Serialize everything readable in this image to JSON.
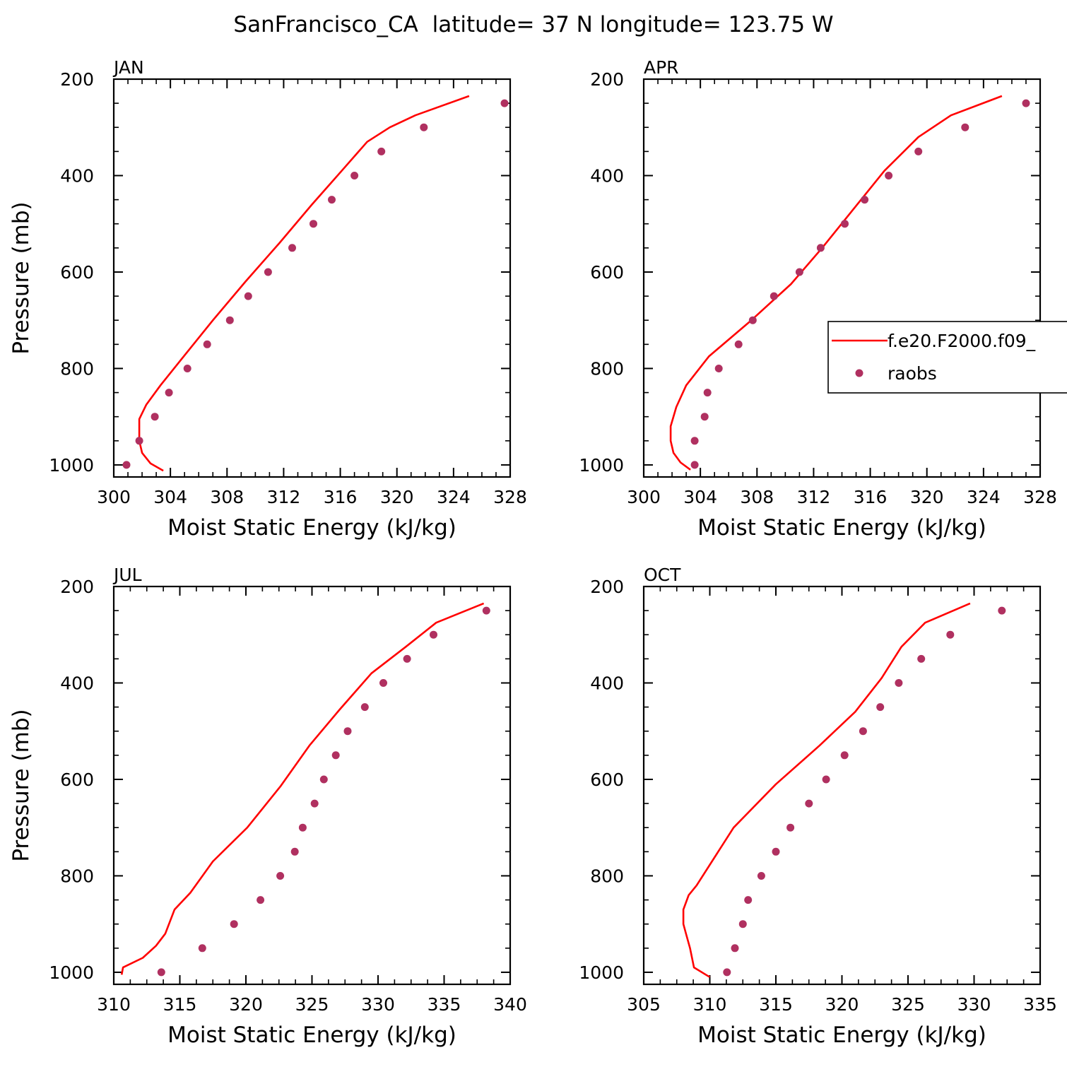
{
  "figure": {
    "title": "SanFrancisco_CA  latitude= 37 N longitude= 123.75 W",
    "legend": {
      "model_label": "f.e20.F2000.f09_",
      "obs_label": "raobs"
    },
    "colors": {
      "model": "#ff0000",
      "obs": "#b03060",
      "axis": "#000000"
    }
  },
  "chart_data": [
    {
      "type": "scatter",
      "panel": "JAN",
      "xlabel": "Moist Static Energy (kJ/kg)",
      "ylabel": "Pressure (mb)",
      "xlim": [
        300,
        328
      ],
      "xticks": [
        300,
        304,
        308,
        312,
        316,
        320,
        324,
        328
      ],
      "ylim": [
        1025,
        200
      ],
      "yticks": [
        200,
        400,
        600,
        800,
        1000
      ],
      "series": [
        {
          "name": "f.e20.F2000.f09_",
          "kind": "line",
          "x": [
            303.5,
            302.6,
            302.0,
            301.8,
            301.8,
            302.3,
            303.3,
            304.8,
            307.0,
            309.3,
            311.7,
            314.0,
            316.1,
            317.9,
            319.5,
            321.3,
            325.1
          ],
          "y": [
            1012,
            997,
            975,
            950,
            905,
            875,
            835,
            780,
            700,
            620,
            540,
            460,
            390,
            330,
            300,
            275,
            235
          ]
        },
        {
          "name": "raobs",
          "kind": "scatter",
          "x": [
            300.9,
            301.8,
            302.9,
            303.9,
            305.2,
            306.6,
            308.2,
            309.5,
            310.9,
            312.6,
            314.1,
            315.4,
            317.0,
            318.9,
            321.9,
            327.6
          ],
          "y": [
            1000,
            950,
            900,
            850,
            800,
            750,
            700,
            650,
            600,
            550,
            500,
            450,
            400,
            350,
            300,
            250
          ]
        }
      ]
    },
    {
      "type": "scatter",
      "panel": "APR",
      "xlabel": "Moist Static Energy (kJ/kg)",
      "ylabel": "",
      "xlim": [
        300,
        328
      ],
      "xticks": [
        300,
        304,
        308,
        312,
        316,
        320,
        324,
        328
      ],
      "ylim": [
        1025,
        200
      ],
      "yticks": [
        200,
        400,
        600,
        800,
        1000
      ],
      "series": [
        {
          "name": "f.e20.F2000.f09_",
          "kind": "line",
          "x": [
            303.3,
            302.6,
            302.1,
            301.9,
            301.9,
            302.3,
            303.0,
            304.6,
            307.6,
            310.4,
            312.6,
            314.8,
            317.0,
            319.4,
            321.7,
            325.3
          ],
          "y": [
            1010,
            995,
            975,
            950,
            920,
            880,
            835,
            775,
            700,
            625,
            550,
            470,
            390,
            320,
            275,
            235
          ]
        },
        {
          "name": "raobs",
          "kind": "scatter",
          "x": [
            303.6,
            303.6,
            304.3,
            304.5,
            305.3,
            306.7,
            307.7,
            309.2,
            311.0,
            312.5,
            314.2,
            315.6,
            317.3,
            319.4,
            322.7,
            327.0
          ],
          "y": [
            1000,
            950,
            900,
            850,
            800,
            750,
            700,
            650,
            600,
            550,
            500,
            450,
            400,
            350,
            300,
            250
          ]
        }
      ]
    },
    {
      "type": "scatter",
      "panel": "JUL",
      "xlabel": "Moist Static Energy (kJ/kg)",
      "ylabel": "Pressure (mb)",
      "xlim": [
        310,
        340
      ],
      "xticks": [
        310,
        315,
        320,
        325,
        330,
        335,
        340
      ],
      "ylim": [
        1025,
        200
      ],
      "yticks": [
        200,
        400,
        600,
        800,
        1000
      ],
      "series": [
        {
          "name": "f.e20.F2000.f09_",
          "kind": "line",
          "x": [
            310.6,
            310.7,
            312.2,
            313.2,
            313.9,
            314.6,
            315.8,
            317.5,
            320.1,
            322.6,
            324.8,
            327.1,
            329.5,
            332.1,
            334.4,
            338.0
          ],
          "y": [
            1005,
            990,
            970,
            945,
            920,
            870,
            835,
            770,
            700,
            615,
            530,
            455,
            380,
            325,
            275,
            235
          ]
        },
        {
          "name": "raobs",
          "kind": "scatter",
          "x": [
            313.6,
            316.7,
            319.1,
            321.1,
            322.6,
            323.7,
            324.3,
            325.2,
            325.9,
            326.8,
            327.7,
            329.0,
            330.4,
            332.2,
            334.2,
            338.2
          ],
          "y": [
            1000,
            950,
            900,
            850,
            800,
            750,
            700,
            650,
            600,
            550,
            500,
            450,
            400,
            350,
            300,
            250
          ]
        }
      ]
    },
    {
      "type": "scatter",
      "panel": "OCT",
      "xlabel": "Moist Static Energy (kJ/kg)",
      "ylabel": "",
      "xlim": [
        305,
        335
      ],
      "xticks": [
        305,
        310,
        315,
        320,
        325,
        330,
        335
      ],
      "ylim": [
        1025,
        200
      ],
      "yticks": [
        200,
        400,
        600,
        800,
        1000
      ],
      "series": [
        {
          "name": "f.e20.F2000.f09_",
          "kind": "line",
          "x": [
            310.0,
            308.8,
            308.5,
            308.2,
            308.0,
            308.0,
            308.4,
            309.0,
            311.8,
            315.0,
            318.3,
            321.0,
            323.0,
            324.5,
            326.3,
            329.7
          ],
          "y": [
            1010,
            990,
            950,
            920,
            900,
            870,
            840,
            820,
            700,
            610,
            530,
            460,
            390,
            325,
            275,
            235
          ]
        },
        {
          "name": "raobs",
          "kind": "scatter",
          "x": [
            311.3,
            311.9,
            312.5,
            312.9,
            313.9,
            315.0,
            316.1,
            317.5,
            318.8,
            320.2,
            321.6,
            322.9,
            324.3,
            326.0,
            328.2,
            332.1
          ],
          "y": [
            1000,
            950,
            900,
            850,
            800,
            750,
            700,
            650,
            600,
            550,
            500,
            450,
            400,
            350,
            300,
            250
          ]
        }
      ]
    }
  ]
}
